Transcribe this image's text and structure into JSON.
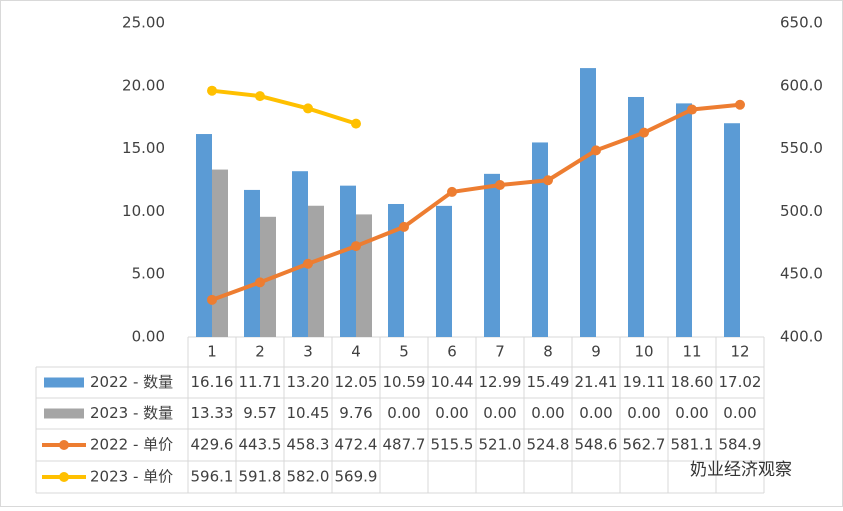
{
  "chart_data": {
    "type": "bar",
    "categories": [
      "1",
      "2",
      "3",
      "4",
      "5",
      "6",
      "7",
      "8",
      "9",
      "10",
      "11",
      "12"
    ],
    "series": [
      {
        "name": "2022 - 数量",
        "type": "bar",
        "axis": "y",
        "color": "#5b9bd5",
        "values": [
          16.16,
          11.71,
          13.2,
          12.05,
          10.59,
          10.44,
          12.99,
          15.49,
          21.41,
          19.11,
          18.6,
          17.02
        ],
        "value_labels": [
          "16.16",
          "11.71",
          "13.20",
          "12.05",
          "10.59",
          "10.44",
          "12.99",
          "15.49",
          "21.41",
          "19.11",
          "18.60",
          "17.02"
        ]
      },
      {
        "name": "2023 - 数量",
        "type": "bar",
        "axis": "y",
        "color": "#a5a5a5",
        "values": [
          13.33,
          9.57,
          10.45,
          9.76,
          0,
          0,
          0,
          0,
          0,
          0,
          0,
          0
        ],
        "value_labels": [
          "13.33",
          "9.57",
          "10.45",
          "9.76",
          "0.00",
          "0.00",
          "0.00",
          "0.00",
          "0.00",
          "0.00",
          "0.00",
          "0.00"
        ]
      },
      {
        "name": "2022 - 单价",
        "type": "line",
        "axis": "y2",
        "color": "#ed7d31",
        "values": [
          429.6,
          443.5,
          458.3,
          472.4,
          487.7,
          515.5,
          521,
          524.8,
          548.6,
          562.7,
          581.1,
          584.9
        ],
        "value_labels": [
          "429.6",
          "443.5",
          "458.3",
          "472.4",
          "487.7",
          "515.5",
          "521.0",
          "524.8",
          "548.6",
          "562.7",
          "581.1",
          "584.9"
        ]
      },
      {
        "name": "2023 - 单价",
        "type": "line",
        "axis": "y2",
        "color": "#ffc000",
        "values": [
          596.1,
          591.8,
          582,
          569.9,
          null,
          null,
          null,
          null,
          null,
          null,
          null,
          null
        ],
        "value_labels": [
          "596.1",
          "591.8",
          "582.0",
          "569.9",
          null,
          null,
          null,
          null,
          null,
          null,
          null,
          null
        ]
      }
    ],
    "ylim": [
      0,
      25
    ],
    "yticks": [
      {
        "value": 0,
        "label": "0.00"
      },
      {
        "value": 5,
        "label": "5.00"
      },
      {
        "value": 10,
        "label": "10.00"
      },
      {
        "value": 15,
        "label": "15.00"
      },
      {
        "value": 20,
        "label": "20.00"
      },
      {
        "value": 25,
        "label": "25.00"
      }
    ],
    "y2lim": [
      400,
      650
    ],
    "y2ticks": [
      {
        "value": 400,
        "label": "400.0"
      },
      {
        "value": 450,
        "label": "450.0"
      },
      {
        "value": 500,
        "label": "500.0"
      },
      {
        "value": 550,
        "label": "550.0"
      },
      {
        "value": 600,
        "label": "600.0"
      },
      {
        "value": 650,
        "label": "650.0"
      }
    ],
    "grid": false,
    "watermark": "奶业经济观察"
  }
}
